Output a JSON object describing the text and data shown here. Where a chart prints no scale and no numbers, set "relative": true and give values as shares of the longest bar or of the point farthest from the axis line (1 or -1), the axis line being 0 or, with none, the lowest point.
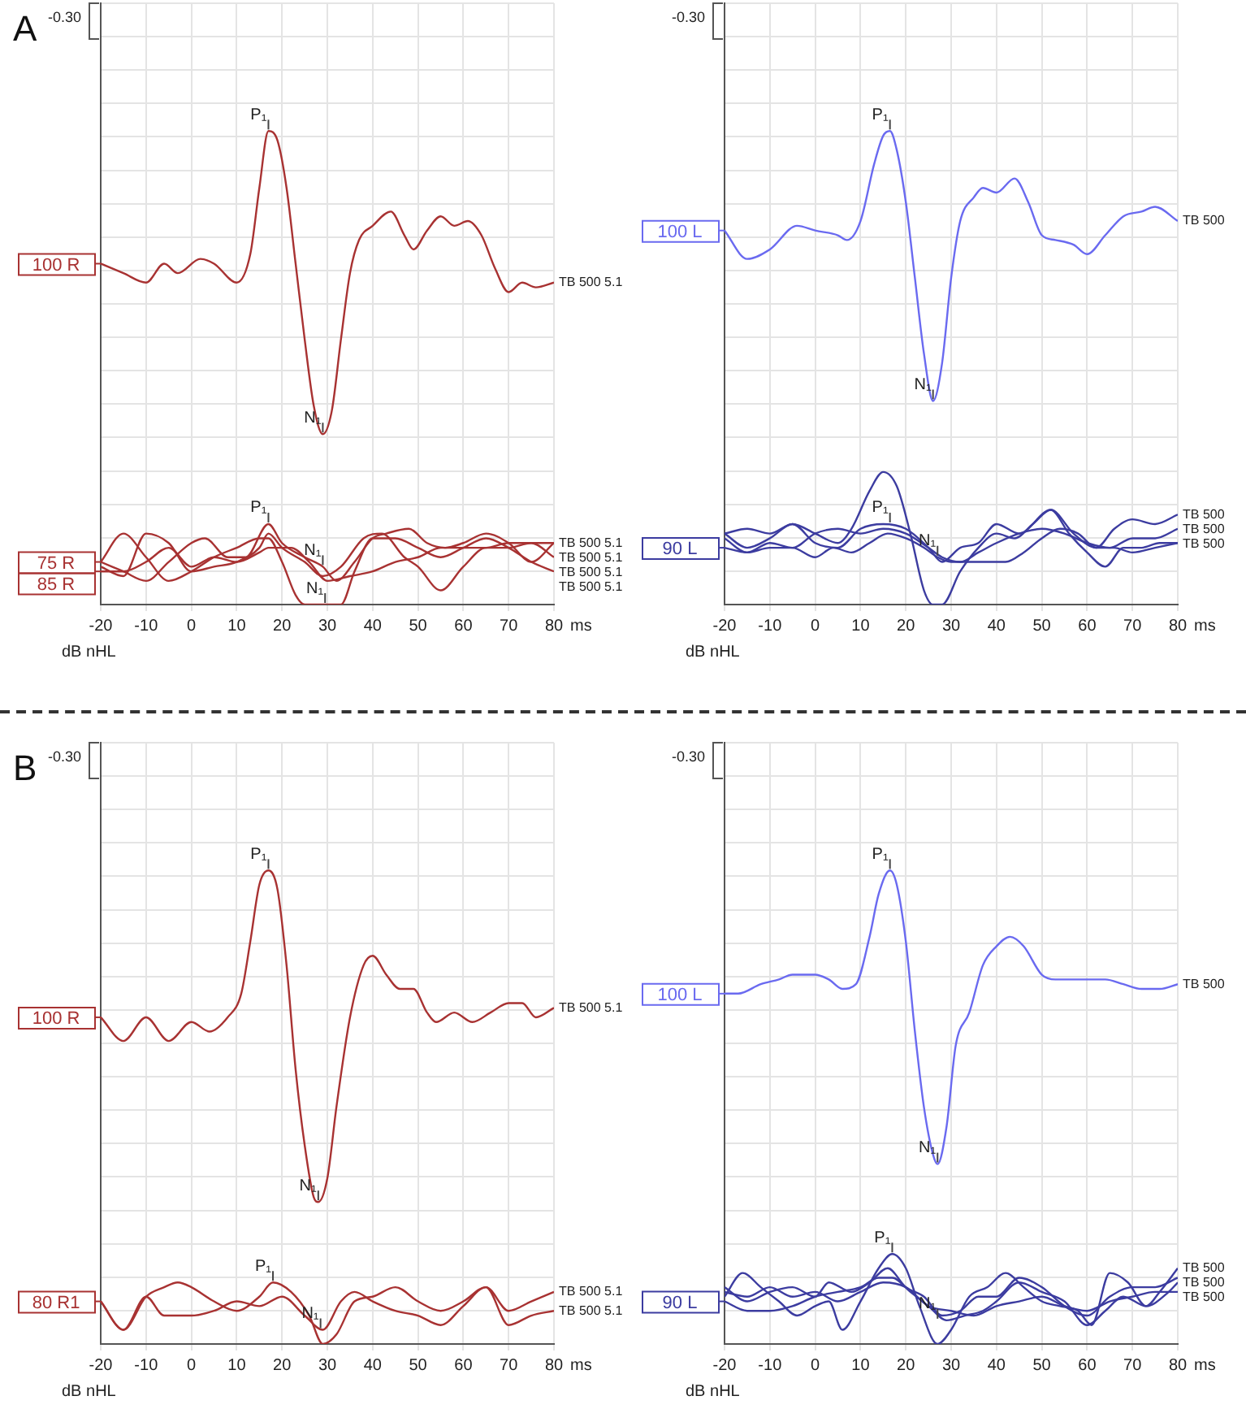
{
  "chart_data": [
    {
      "type": "line",
      "title": "A",
      "xlabel": "ms",
      "ylabel": "dB nHL",
      "xlim": [
        -20,
        80
      ],
      "xticks": [
        -20,
        -10,
        0,
        10,
        20,
        30,
        40,
        50,
        60,
        70,
        80
      ],
      "relative": true,
      "grid": true,
      "legend": "left",
      "series": [
        {
          "name": "100 R",
          "color": "#a83232",
          "x": [
            -20,
            -15,
            -10,
            -6,
            -3,
            2,
            5,
            10,
            13,
            15,
            17,
            19,
            21,
            23,
            25,
            27,
            29,
            31,
            33,
            35,
            37,
            40,
            44,
            47,
            49,
            52,
            55,
            58,
            61,
            64,
            67,
            70,
            73,
            76,
            80
          ],
          "values": [
            0.72,
            0.7,
            0.68,
            0.72,
            0.7,
            0.73,
            0.72,
            0.68,
            0.74,
            0.88,
            1.0,
            0.98,
            0.88,
            0.72,
            0.56,
            0.42,
            0.36,
            0.41,
            0.56,
            0.7,
            0.77,
            0.8,
            0.83,
            0.78,
            0.75,
            0.79,
            0.82,
            0.8,
            0.81,
            0.78,
            0.71,
            0.66,
            0.68,
            0.67,
            0.68
          ]
        },
        {
          "name": "75 R",
          "color": "#a83232",
          "x": [
            -20,
            -15,
            -10,
            -5,
            0,
            5,
            10,
            15,
            17,
            20,
            23,
            25,
            30,
            33,
            36,
            40,
            45,
            50,
            55,
            60,
            65,
            70,
            75,
            80
          ],
          "values": [
            0.09,
            0.15,
            0.1,
            0.05,
            0.07,
            0.1,
            0.12,
            0.14,
            0.14,
            0.09,
            0.02,
            0,
            0,
            0,
            0.07,
            0.14,
            0.14,
            0.12,
            0.1,
            0.12,
            0.14,
            0.12,
            0.09,
            0.07
          ]
        },
        {
          "color": "#a83232",
          "x": [
            -20,
            -15,
            -10,
            -5,
            0,
            3,
            8,
            12,
            17,
            20,
            25,
            29,
            32,
            36,
            40,
            43,
            48,
            52,
            56,
            60,
            65,
            70,
            75,
            80
          ],
          "values": [
            0.09,
            0.07,
            0.05,
            0.09,
            0.13,
            0.14,
            0.1,
            0.1,
            0.17,
            0.13,
            0.1,
            0.08,
            0.05,
            0.09,
            0.14,
            0.15,
            0.16,
            0.13,
            0.12,
            0.13,
            0.15,
            0.13,
            0.09,
            0.13
          ]
        },
        {
          "color": "#a83232",
          "x": [
            -20,
            -15,
            -10,
            -5,
            0,
            5,
            10,
            15,
            17,
            20,
            25,
            29,
            33,
            38,
            42,
            47,
            50,
            55,
            60,
            65,
            70,
            75,
            80
          ],
          "values": [
            0.08,
            0.06,
            0.15,
            0.13,
            0.07,
            0.08,
            0.09,
            0.12,
            0.15,
            0.12,
            0.09,
            0.06,
            0.08,
            0.14,
            0.15,
            0.1,
            0.08,
            0.03,
            0.08,
            0.12,
            0.12,
            0.13,
            0.1
          ]
        },
        {
          "name": "85 R",
          "color": "#a83232",
          "x": [
            -20,
            -15,
            -10,
            -5,
            0,
            5,
            10,
            15,
            17,
            22,
            26,
            30,
            35,
            40,
            45,
            50,
            55,
            60,
            65,
            70,
            75,
            80
          ],
          "values": [
            0.07,
            0.07,
            0.09,
            0.12,
            0.08,
            0.1,
            0.09,
            0.11,
            0.12,
            0.12,
            0.09,
            0.05,
            0.06,
            0.07,
            0.09,
            0.1,
            0.12,
            0.12,
            0.12,
            0.13,
            0.13,
            0.13
          ]
        }
      ],
      "annotations": [
        "-0.30",
        {
          "text": "P₁",
          "x": 17,
          "y": 1.0
        },
        {
          "text": "N₁",
          "x": 29,
          "y": 0.36
        },
        {
          "text": "P₁",
          "x": 17,
          "y": 0.17
        },
        {
          "text": "N₁",
          "x": 29,
          "y": 0.08
        },
        {
          "text": "N₁",
          "x": 29.5,
          "y": 0
        },
        {
          "text": "TB 500 5.1",
          "x": 80,
          "y": 0.68
        },
        {
          "text": "TB 500 5.1",
          "x": 80,
          "y": 0.13
        },
        {
          "text": "TB 500 5.1",
          "x": 80,
          "y": 0.13
        },
        {
          "text": "TB 500 5.1",
          "x": 80,
          "y": 0.1
        },
        {
          "text": "TB 500 5.1",
          "x": 80,
          "y": 0.07
        }
      ]
    },
    {
      "type": "line",
      "xlabel": "ms",
      "ylabel": "dB nHL",
      "xlim": [
        -20,
        80
      ],
      "xticks": [
        -20,
        -10,
        0,
        10,
        20,
        30,
        40,
        50,
        60,
        70,
        80
      ],
      "relative": true,
      "grid": true,
      "legend": "left",
      "series": [
        {
          "name": "100 L",
          "color": "#6a6af0",
          "x": [
            -20,
            -15,
            -10,
            -4,
            0,
            5,
            7,
            10,
            13,
            15,
            16.5,
            18,
            20,
            22,
            24,
            26,
            28,
            30,
            32,
            35,
            37,
            40,
            44,
            47,
            50,
            53,
            57,
            60,
            64,
            68,
            72,
            75,
            80
          ],
          "values": [
            0.79,
            0.73,
            0.75,
            0.8,
            0.79,
            0.78,
            0.77,
            0.81,
            0.93,
            0.99,
            1.0,
            0.96,
            0.85,
            0.69,
            0.53,
            0.43,
            0.51,
            0.69,
            0.81,
            0.86,
            0.88,
            0.87,
            0.9,
            0.85,
            0.78,
            0.77,
            0.76,
            0.74,
            0.78,
            0.82,
            0.83,
            0.84,
            0.81
          ]
        },
        {
          "color": "#3c3ca0",
          "x": [
            -20,
            -15,
            -10,
            -5,
            0,
            5,
            8,
            12,
            15,
            18,
            21,
            24,
            26,
            28,
            32,
            36,
            40,
            44,
            48,
            52,
            56,
            60,
            64,
            68,
            72,
            76,
            80
          ],
          "values": [
            0.15,
            0.12,
            0.14,
            0.17,
            0.15,
            0.13,
            0.16,
            0.24,
            0.28,
            0.25,
            0.15,
            0.03,
            0,
            0,
            0.07,
            0.12,
            0.15,
            0.14,
            0.17,
            0.2,
            0.15,
            0.11,
            0.08,
            0.12,
            0.12,
            0.13,
            0.13
          ]
        },
        {
          "color": "#3c3ca0",
          "x": [
            -20,
            -15,
            -10,
            -5,
            0,
            5,
            10,
            15,
            20,
            25,
            28,
            32,
            36,
            40,
            45,
            52,
            57,
            62,
            66,
            70,
            75,
            80
          ],
          "values": [
            0.15,
            0.16,
            0.15,
            0.17,
            0.13,
            0.12,
            0.16,
            0.17,
            0.16,
            0.12,
            0.09,
            0.12,
            0.13,
            0.17,
            0.15,
            0.2,
            0.15,
            0.12,
            0.16,
            0.18,
            0.17,
            0.19
          ]
        },
        {
          "color": "#3c3ca0",
          "x": [
            -20,
            -15,
            -10,
            -5,
            0,
            5,
            10,
            15,
            20,
            25,
            28,
            32,
            36,
            40,
            45,
            50,
            55,
            60,
            65,
            70,
            75,
            80
          ],
          "values": [
            0.14,
            0.11,
            0.13,
            0.12,
            0.15,
            0.16,
            0.15,
            0.16,
            0.15,
            0.12,
            0.1,
            0.09,
            0.11,
            0.13,
            0.15,
            0.16,
            0.15,
            0.13,
            0.12,
            0.14,
            0.14,
            0.16
          ]
        },
        {
          "name": "90 L",
          "color": "#3c3ca0",
          "x": [
            -20,
            -15,
            -10,
            -5,
            0,
            4,
            8,
            12,
            16,
            20,
            24,
            27,
            30,
            36,
            42,
            46,
            50,
            54,
            58,
            62,
            66,
            70,
            75,
            80
          ],
          "values": [
            0.12,
            0.11,
            0.12,
            0.12,
            0.1,
            0.12,
            0.11,
            0.13,
            0.15,
            0.14,
            0.12,
            0.1,
            0.09,
            0.09,
            0.09,
            0.11,
            0.14,
            0.16,
            0.15,
            0.12,
            0.12,
            0.11,
            0.12,
            0.13
          ]
        }
      ],
      "annotations": [
        "-0.30",
        {
          "text": "P₁",
          "x": 16.5,
          "y": 1.0
        },
        {
          "text": "N₁",
          "x": 26,
          "y": 0.43
        },
        {
          "text": "P₁",
          "x": 16.5,
          "y": 0.17
        },
        {
          "text": "N₁",
          "x": 27,
          "y": 0.1
        },
        {
          "text": "TB 500",
          "x": 80,
          "y": 0.81
        },
        {
          "text": "TB 500",
          "x": 80,
          "y": 0.19
        },
        {
          "text": "TB 500",
          "x": 80,
          "y": 0.16
        },
        {
          "text": "TB 500",
          "x": 80,
          "y": 0.13
        }
      ]
    },
    {
      "type": "line",
      "title": "B",
      "xlabel": "ms",
      "ylabel": "dB nHL",
      "xlim": [
        -20,
        80
      ],
      "xticks": [
        -20,
        -10,
        0,
        10,
        20,
        30,
        40,
        50,
        60,
        70,
        80
      ],
      "relative": true,
      "grid": true,
      "legend": "left",
      "series": [
        {
          "name": "100 R",
          "color": "#a83232",
          "x": [
            -20,
            -15,
            -10,
            -5,
            0,
            4,
            8,
            11,
            13,
            15,
            17,
            19,
            21,
            23,
            25,
            27,
            28,
            30,
            32,
            35,
            38,
            40,
            43,
            46,
            49,
            52,
            54,
            58,
            62,
            66,
            70,
            73,
            76,
            80
          ],
          "values": [
            0.69,
            0.64,
            0.69,
            0.64,
            0.68,
            0.66,
            0.69,
            0.74,
            0.85,
            0.97,
            1.0,
            0.96,
            0.8,
            0.58,
            0.42,
            0.31,
            0.3,
            0.35,
            0.5,
            0.69,
            0.8,
            0.82,
            0.78,
            0.75,
            0.75,
            0.7,
            0.68,
            0.7,
            0.68,
            0.7,
            0.72,
            0.72,
            0.69,
            0.71
          ]
        },
        {
          "name": "80 R1",
          "color": "#a83232",
          "x": [
            -20,
            -15,
            -10,
            -6,
            -3,
            0,
            5,
            10,
            15,
            18,
            22,
            26,
            29,
            32,
            36,
            40,
            45,
            50,
            55,
            60,
            65,
            70,
            75,
            80
          ],
          "values": [
            0.09,
            0.03,
            0.1,
            0.12,
            0.13,
            0.12,
            0.09,
            0.07,
            0.1,
            0.13,
            0.11,
            0.06,
            0,
            0.02,
            0.09,
            0.1,
            0.12,
            0.09,
            0.07,
            0.09,
            0.12,
            0.04,
            0.06,
            0.07
          ]
        },
        {
          "color": "#a83232",
          "x": [
            -20,
            -15,
            -10,
            -6,
            0,
            5,
            10,
            15,
            20,
            25,
            29,
            33,
            36,
            40,
            45,
            50,
            55,
            60,
            65,
            70,
            75,
            80
          ],
          "values": [
            0.09,
            0.03,
            0.1,
            0.06,
            0.06,
            0.07,
            0.09,
            0.08,
            0.1,
            0.06,
            0.03,
            0.09,
            0.11,
            0.09,
            0.07,
            0.06,
            0.04,
            0.08,
            0.12,
            0.07,
            0.09,
            0.11
          ]
        }
      ],
      "annotations": [
        "-0.30",
        {
          "text": "P₁",
          "x": 17,
          "y": 1.0
        },
        {
          "text": "N₁",
          "x": 28,
          "y": 0.3
        },
        {
          "text": "P₁",
          "x": 18,
          "y": 0.13
        },
        {
          "text": "N₁",
          "x": 28.5,
          "y": 0.03
        },
        {
          "text": "TB 500 5.1",
          "x": 80,
          "y": 0.71
        },
        {
          "text": "TB 500 5.1",
          "x": 80,
          "y": 0.11
        },
        {
          "text": "TB 500 5.1",
          "x": 80,
          "y": 0.07
        }
      ]
    },
    {
      "type": "line",
      "xlabel": "ms",
      "ylabel": "dB nHL",
      "xlim": [
        -20,
        80
      ],
      "xticks": [
        -20,
        -10,
        0,
        10,
        20,
        30,
        40,
        50,
        60,
        70,
        80
      ],
      "relative": true,
      "grid": true,
      "legend": "left",
      "series": [
        {
          "name": "100 L",
          "color": "#6a6af0",
          "x": [
            -20,
            -17,
            -12,
            -8,
            -5,
            0,
            3,
            6,
            9,
            12,
            14,
            16.5,
            18,
            20,
            22,
            24,
            26,
            27,
            29,
            31,
            34,
            37,
            40,
            43,
            46,
            50,
            53,
            57,
            60,
            64,
            68,
            72,
            76,
            80
          ],
          "values": [
            0.74,
            0.74,
            0.76,
            0.77,
            0.78,
            0.78,
            0.77,
            0.75,
            0.76,
            0.86,
            0.95,
            1.0,
            0.97,
            0.85,
            0.66,
            0.5,
            0.4,
            0.38,
            0.46,
            0.63,
            0.7,
            0.8,
            0.84,
            0.86,
            0.84,
            0.78,
            0.77,
            0.77,
            0.77,
            0.77,
            0.76,
            0.75,
            0.75,
            0.76
          ]
        },
        {
          "color": "#3c3ca0",
          "x": [
            -20,
            -16,
            -12,
            -8,
            -4,
            0,
            3,
            6,
            10,
            14,
            17,
            20,
            23,
            27,
            30,
            34,
            38,
            42,
            46,
            50,
            54,
            58,
            61,
            65,
            69,
            73,
            76,
            80
          ],
          "values": [
            0.1,
            0.15,
            0.12,
            0.09,
            0.06,
            0.08,
            0.09,
            0.03,
            0.09,
            0.16,
            0.19,
            0.16,
            0.08,
            0,
            0.03,
            0.1,
            0.12,
            0.15,
            0.12,
            0.09,
            0.08,
            0.07,
            0.04,
            0.15,
            0.13,
            0.08,
            0.11,
            0.16
          ]
        },
        {
          "color": "#3c3ca0",
          "x": [
            -20,
            -15,
            -10,
            -5,
            0,
            3,
            8,
            12,
            16,
            20,
            24,
            28,
            32,
            36,
            40,
            45,
            50,
            55,
            60,
            65,
            70,
            75,
            80
          ],
          "values": [
            0.12,
            0.09,
            0.11,
            0.12,
            0.1,
            0.13,
            0.11,
            0.13,
            0.16,
            0.12,
            0.1,
            0.06,
            0.07,
            0.1,
            0.1,
            0.14,
            0.12,
            0.08,
            0.06,
            0.1,
            0.12,
            0.12,
            0.14
          ]
        },
        {
          "name": "90 L",
          "color": "#3c3ca0",
          "x": [
            -20,
            -15,
            -10,
            -5,
            0,
            5,
            10,
            14,
            17,
            21,
            25,
            29,
            33,
            37,
            40,
            45,
            50,
            55,
            60,
            64,
            68,
            73,
            78,
            80
          ],
          "values": [
            0.09,
            0.07,
            0.07,
            0.08,
            0.1,
            0.11,
            0.12,
            0.14,
            0.14,
            0.11,
            0.08,
            0.05,
            0.06,
            0.07,
            0.09,
            0.13,
            0.11,
            0.09,
            0.04,
            0.07,
            0.1,
            0.08,
            0.11,
            0.13
          ]
        },
        {
          "color": "#3c3ca0",
          "x": [
            -20,
            -15,
            -10,
            -5,
            0,
            5,
            10,
            15,
            20,
            25,
            30,
            35,
            40,
            45,
            50,
            55,
            60,
            65,
            70,
            75,
            80
          ],
          "values": [
            0.11,
            0.1,
            0.12,
            0.1,
            0.11,
            0.09,
            0.11,
            0.13,
            0.12,
            0.08,
            0.07,
            0.06,
            0.08,
            0.09,
            0.1,
            0.08,
            0.07,
            0.09,
            0.1,
            0.11,
            0.11
          ]
        }
      ],
      "annotations": [
        "-0.30",
        {
          "text": "P₁",
          "x": 17,
          "y": 0.19
        },
        {
          "text": "P₁",
          "x": 16.5,
          "y": 1.0
        },
        {
          "text": "N₁",
          "x": 27,
          "y": 0.38
        },
        {
          "text": "N₁",
          "x": 27,
          "y": 0.05
        },
        {
          "text": "TB 500",
          "x": 80,
          "y": 0.16
        },
        {
          "text": "TB 500",
          "x": 80,
          "y": 0.14
        },
        {
          "text": "TB 500",
          "x": 80,
          "y": 0.11
        },
        {
          "text": "TB 500",
          "x": 80,
          "y": 0.76
        }
      ]
    }
  ]
}
